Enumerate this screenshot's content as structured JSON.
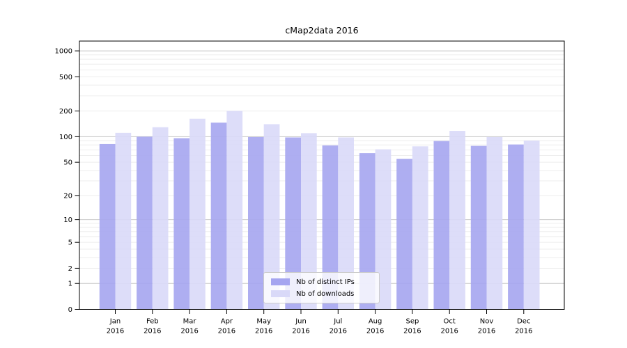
{
  "chart_data": {
    "type": "bar",
    "title": "cMap2data 2016",
    "categories": [
      "Jan",
      "Feb",
      "Mar",
      "Apr",
      "May",
      "Jun",
      "Jul",
      "Aug",
      "Sep",
      "Oct",
      "Nov",
      "Dec"
    ],
    "category_year": "2016",
    "series": [
      {
        "name": "Nb of distinct IPs",
        "color": "#a5a5f0",
        "values": [
          82,
          100,
          96,
          146,
          99,
          98,
          79,
          64,
          55,
          89,
          78,
          81
        ]
      },
      {
        "name": "Nb of downloads",
        "color": "#d9d9f8",
        "values": [
          111,
          129,
          162,
          200,
          140,
          110,
          98,
          71,
          77,
          117,
          99,
          90
        ]
      }
    ],
    "yscale": "log1p",
    "yticks": [
      0,
      1,
      2,
      5,
      10,
      20,
      50,
      100,
      200,
      500,
      1000
    ],
    "ylim": [
      0,
      1300
    ],
    "grid": true,
    "gridline_major_color": "#c6c6c6",
    "gridline_minor_color": "#ededed",
    "legend_position": "lower center"
  }
}
